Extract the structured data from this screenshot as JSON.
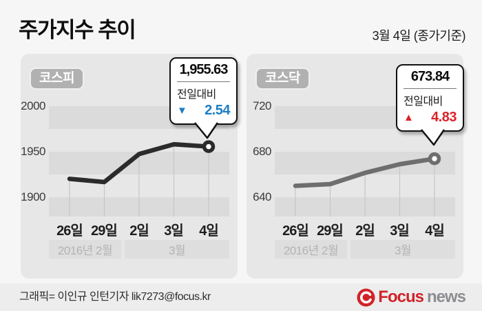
{
  "header": {
    "title": "주가지수 추이",
    "date_note": "3월 4일 (종가기준)"
  },
  "footer": {
    "credit": "그래픽= 이인규 인턴기자 lik7273@focus.kr",
    "logo_focus": "Focus",
    "logo_news": "news"
  },
  "colors": {
    "kospi_line": "#2b2b2b",
    "kosdaq_line": "#6e6e6e",
    "down_blue": "#1d7dc4",
    "up_red": "#dd2127",
    "logo_red": "#d0232a",
    "stripe": "#dbdbdb",
    "drop_line": "#c5c5c5"
  },
  "chart_data": [
    {
      "type": "line",
      "name": "코스피",
      "x": [
        "26일",
        "29일",
        "2일",
        "3일",
        "4일"
      ],
      "values": [
        1920.2,
        1916.7,
        1947.4,
        1958.17,
        1955.63
      ],
      "y_ticks": [
        2000,
        1950,
        1900
      ],
      "months": [
        {
          "label": "2016년 2월"
        },
        {
          "label": "3월"
        }
      ],
      "callout": {
        "value": "1,955.63",
        "label": "전일대비",
        "direction": "down",
        "arrow": "▼",
        "change": "2.54"
      },
      "line_color": "#2b2b2b",
      "accent": "#1d7dc4"
    },
    {
      "type": "line",
      "name": "코스닥",
      "x": [
        "26일",
        "29일",
        "2일",
        "3일",
        "4일"
      ],
      "values": [
        650.0,
        651.5,
        661.4,
        669.01,
        673.84
      ],
      "y_ticks": [
        720,
        680,
        640
      ],
      "months": [
        {
          "label": "2016년 2월"
        },
        {
          "label": "3월"
        }
      ],
      "callout": {
        "value": "673.84",
        "label": "전일대비",
        "direction": "up",
        "arrow": "▲",
        "change": "4.83"
      },
      "line_color": "#6e6e6e",
      "accent": "#dd2127"
    }
  ]
}
